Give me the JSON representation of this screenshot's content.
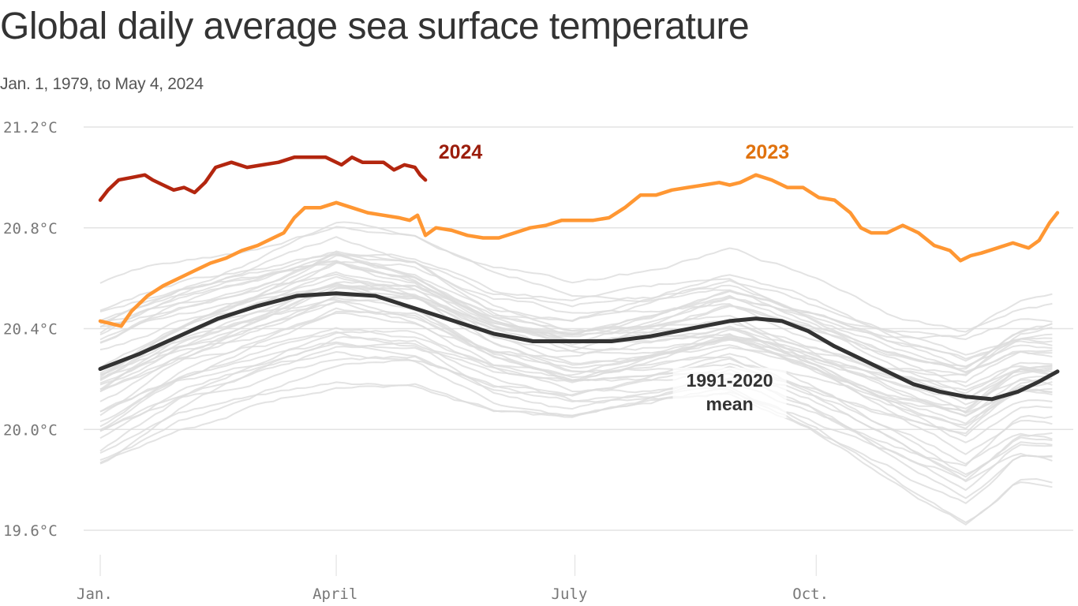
{
  "header": {
    "title": "Global daily average sea surface temperature",
    "subtitle": "Jan. 1, 1979, to May 4, 2024"
  },
  "colors": {
    "y2024": "#b3260f",
    "y2024_label": "#9b1d0c",
    "y2023": "#ff9733",
    "y2023_label": "#e0720e",
    "mean": "#333333",
    "history": "#dcdcdc",
    "grid": "#e3e3e3",
    "tick_text": "#777777"
  },
  "chart_data": {
    "type": "line",
    "title": "Global daily average sea surface temperature",
    "subtitle": "Jan. 1, 1979, to May 4, 2024",
    "xlabel": "",
    "ylabel": "",
    "x_unit": "day of year",
    "xlim": [
      0,
      365
    ],
    "ylim": [
      19.5,
      21.25
    ],
    "grid": true,
    "y_ticks": [
      {
        "value": 21.2,
        "label": "21.2°C"
      },
      {
        "value": 20.8,
        "label": "20.8°C"
      },
      {
        "value": 20.4,
        "label": "20.4°C"
      },
      {
        "value": 20.0,
        "label": "20.0°C"
      },
      {
        "value": 19.6,
        "label": "19.6°C"
      }
    ],
    "x_ticks": [
      {
        "value": 0,
        "label": "Jan."
      },
      {
        "value": 90,
        "label": "April"
      },
      {
        "value": 181,
        "label": "July"
      },
      {
        "value": 273,
        "label": "Oct."
      }
    ],
    "series": [
      {
        "name": "2024",
        "label": "2024",
        "label_anchor": {
          "x": 129,
          "y": 21.1
        },
        "x": [
          0,
          3,
          7,
          12,
          17,
          20,
          24,
          28,
          32,
          36,
          40,
          44,
          50,
          56,
          62,
          68,
          74,
          80,
          86,
          92,
          96,
          100,
          104,
          108,
          112,
          116,
          120,
          122,
          124
        ],
        "values": [
          20.91,
          20.95,
          20.99,
          21.0,
          21.01,
          20.99,
          20.97,
          20.95,
          20.96,
          20.94,
          20.98,
          21.04,
          21.06,
          21.04,
          21.05,
          21.06,
          21.08,
          21.08,
          21.08,
          21.05,
          21.08,
          21.06,
          21.06,
          21.06,
          21.03,
          21.05,
          21.04,
          21.01,
          20.99
        ]
      },
      {
        "name": "2023",
        "label": "2023",
        "label_anchor": {
          "x": 246,
          "y": 21.1
        },
        "x": [
          0,
          4,
          8,
          12,
          18,
          24,
          30,
          36,
          42,
          48,
          54,
          60,
          66,
          70,
          74,
          78,
          84,
          90,
          96,
          102,
          108,
          114,
          118,
          121,
          124,
          128,
          134,
          140,
          146,
          152,
          158,
          164,
          170,
          176,
          182,
          188,
          194,
          200,
          206,
          212,
          218,
          224,
          230,
          236,
          240,
          244,
          250,
          256,
          262,
          268,
          274,
          280,
          286,
          290,
          294,
          300,
          306,
          312,
          318,
          324,
          328,
          332,
          336,
          342,
          348,
          354,
          358,
          362,
          365
        ],
        "values": [
          20.43,
          20.42,
          20.41,
          20.47,
          20.53,
          20.57,
          20.6,
          20.63,
          20.66,
          20.68,
          20.71,
          20.73,
          20.76,
          20.78,
          20.84,
          20.88,
          20.88,
          20.9,
          20.88,
          20.86,
          20.85,
          20.84,
          20.83,
          20.85,
          20.77,
          20.8,
          20.79,
          20.77,
          20.76,
          20.76,
          20.78,
          20.8,
          20.81,
          20.83,
          20.83,
          20.83,
          20.84,
          20.88,
          20.93,
          20.93,
          20.95,
          20.96,
          20.97,
          20.98,
          20.97,
          20.98,
          21.01,
          20.99,
          20.96,
          20.96,
          20.92,
          20.91,
          20.86,
          20.8,
          20.78,
          20.78,
          20.81,
          20.78,
          20.73,
          20.71,
          20.67,
          20.69,
          20.7,
          20.72,
          20.74,
          20.72,
          20.75,
          20.82,
          20.86
        ]
      },
      {
        "name": "1991-2020 mean",
        "label": "1991-2020",
        "label_line2": "mean",
        "label_anchor": {
          "x": 240,
          "y": 20.22
        },
        "x": [
          0,
          15,
          30,
          45,
          60,
          75,
          90,
          105,
          120,
          135,
          150,
          165,
          180,
          195,
          210,
          225,
          240,
          250,
          260,
          270,
          280,
          290,
          300,
          310,
          320,
          330,
          340,
          350,
          358,
          365
        ],
        "values": [
          20.24,
          20.3,
          20.37,
          20.44,
          20.49,
          20.53,
          20.54,
          20.53,
          20.48,
          20.43,
          20.38,
          20.35,
          20.35,
          20.35,
          20.37,
          20.4,
          20.43,
          20.44,
          20.43,
          20.39,
          20.33,
          20.28,
          20.23,
          20.18,
          20.15,
          20.13,
          20.12,
          20.15,
          20.19,
          20.23
        ]
      }
    ],
    "history_years": "1979-2022 (individual years shown as faint gray lines)",
    "history_envelope": {
      "x": [
        0,
        30,
        60,
        90,
        120,
        150,
        180,
        210,
        240,
        270,
        300,
        330,
        350,
        365
      ],
      "low": [
        19.78,
        19.98,
        20.1,
        20.18,
        20.18,
        20.05,
        19.98,
        20.02,
        20.06,
        19.95,
        19.8,
        19.62,
        19.8,
        19.78
      ],
      "high": [
        20.6,
        20.7,
        20.78,
        20.9,
        20.82,
        20.66,
        20.6,
        20.64,
        20.72,
        20.62,
        20.52,
        20.5,
        20.58,
        20.6
      ]
    }
  }
}
